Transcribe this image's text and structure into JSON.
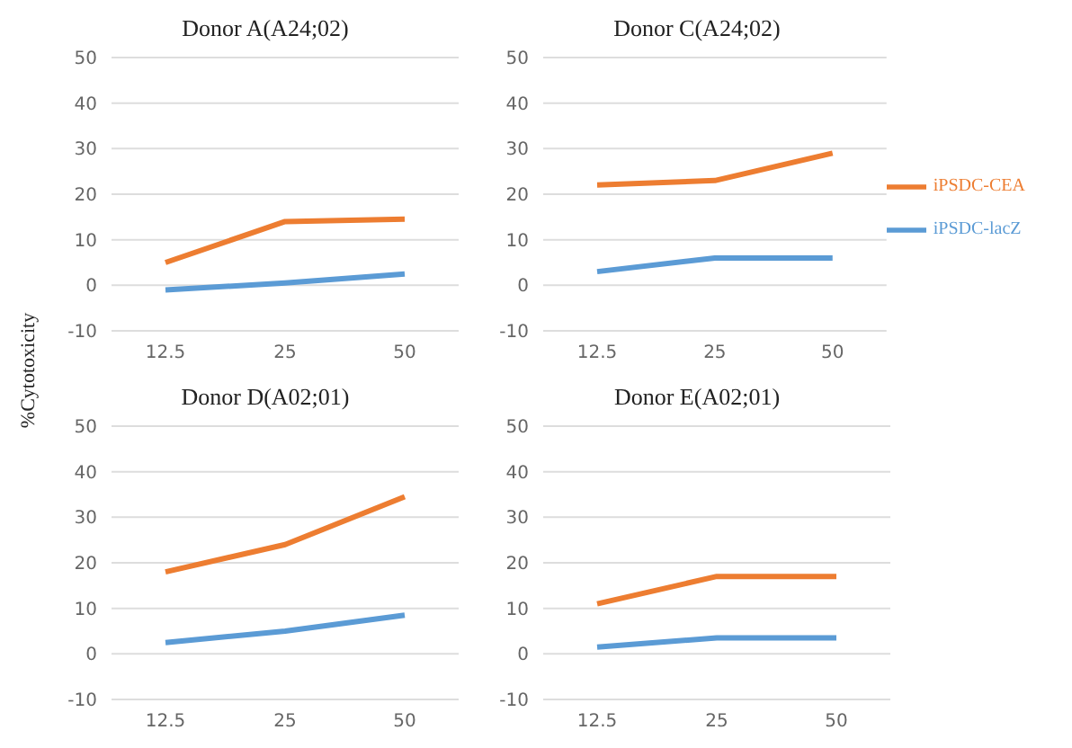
{
  "chart_data": [
    {
      "type": "line",
      "title": "Donor A(A24;02)",
      "ylabel": "%Cytotoxicity",
      "categories": [
        "12.5",
        "25",
        "50"
      ],
      "series": [
        {
          "color": "#ed7d31",
          "values": [
            5,
            14,
            14.5
          ]
        },
        {
          "color": "#5b9bd5",
          "values": [
            -1,
            0.5,
            2.5
          ]
        }
      ],
      "ylim": [
        -10,
        50
      ],
      "yticks": [
        -10,
        0,
        10,
        20,
        30,
        40,
        50
      ],
      "grid": "y",
      "legend": false
    },
    {
      "type": "line",
      "title": "Donor C(A24;02)",
      "categories": [
        "12.5",
        "25",
        "50"
      ],
      "series": [
        {
          "name": "iPSDC-CEA",
          "color": "#ed7d31",
          "values": [
            22,
            23,
            29
          ]
        },
        {
          "name": "iPSDC-lacZ",
          "color": "#5b9bd5",
          "values": [
            3,
            6,
            6
          ]
        }
      ],
      "ylim": [
        -10,
        50
      ],
      "yticks": [
        -10,
        0,
        10,
        20,
        30,
        40,
        50
      ],
      "grid": "y",
      "legend": "right"
    },
    {
      "type": "line",
      "title": "Donor D(A02;01)",
      "categories": [
        "12.5",
        "25",
        "50"
      ],
      "series": [
        {
          "color": "#ed7d31",
          "values": [
            18,
            24,
            34.5
          ]
        },
        {
          "color": "#5b9bd5",
          "values": [
            2.5,
            5,
            8.5
          ]
        }
      ],
      "ylim": [
        -10,
        50
      ],
      "yticks": [
        -10,
        0,
        10,
        20,
        30,
        40,
        50
      ],
      "grid": "y",
      "legend": false
    },
    {
      "type": "line",
      "title": "Donor E(A02;01)",
      "categories": [
        "12.5",
        "25",
        "50"
      ],
      "series": [
        {
          "color": "#ed7d31",
          "values": [
            11,
            17,
            17
          ]
        },
        {
          "color": "#5b9bd5",
          "values": [
            1.5,
            3.5,
            3.5
          ]
        }
      ],
      "ylim": [
        -10,
        50
      ],
      "yticks": [
        -10,
        0,
        10,
        20,
        30,
        40,
        50
      ],
      "grid": "y",
      "legend": false
    }
  ]
}
